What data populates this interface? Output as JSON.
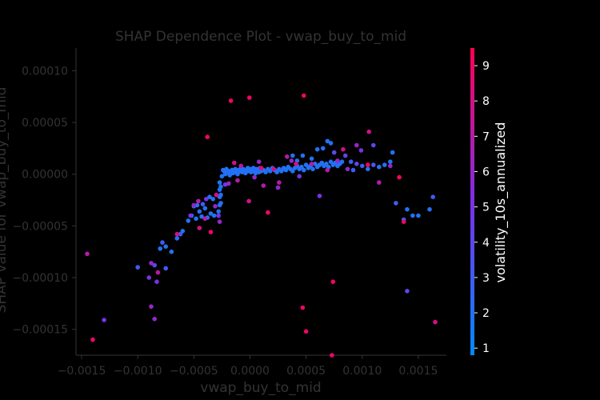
{
  "chart_data": {
    "type": "scatter",
    "title": "SHAP Dependence Plot - vwap_buy_to_mid",
    "xlabel": "vwap_buy_to_mid",
    "ylabel": "SHAP value for vwap_buy_to_mid",
    "xlim": [
      -0.00155,
      0.00175
    ],
    "ylim": [
      -0.000175,
      0.000122
    ],
    "x_ticks": [
      -0.0015,
      -0.001,
      -0.0005,
      0.0,
      0.0005,
      0.001,
      0.0015
    ],
    "x_tick_labels": [
      "−0.0015",
      "−0.0010",
      "−0.0005",
      "0.0000",
      "0.0005",
      "0.0010",
      "0.0015"
    ],
    "y_ticks": [
      0.0001,
      5e-05,
      0.0,
      -5e-05,
      -0.0001,
      -0.00015
    ],
    "y_tick_labels": [
      "0.00010",
      "0.00005",
      "0.00000",
      "−0.00005",
      "−0.00010",
      "−0.00015"
    ],
    "colorbar": {
      "label": "volatility_10s_annualized",
      "range": [
        0.8,
        9.5
      ],
      "ticks": [
        1,
        2,
        3,
        4,
        5,
        6,
        7,
        8,
        9
      ],
      "tick_labels": [
        "1",
        "2",
        "3",
        "4",
        "5",
        "6",
        "7",
        "8",
        "9"
      ],
      "low_color": "#008afb",
      "high_color": "#ff0052"
    },
    "points": [
      [
        -0.00025,
        -2e-06,
        2
      ],
      [
        -0.00024,
        4e-06,
        2
      ],
      [
        -0.00023,
        3e-06,
        2
      ],
      [
        -0.00022,
        0.0,
        2
      ],
      [
        -0.00021,
        5e-06,
        2
      ],
      [
        -0.0002,
        2e-06,
        2
      ],
      [
        -0.00019,
        3e-06,
        2
      ],
      [
        -0.00018,
        -1e-06,
        2
      ],
      [
        -0.00017,
        2e-06,
        2
      ],
      [
        -0.00016,
        4e-06,
        2
      ],
      [
        -0.00015,
        1e-06,
        2
      ],
      [
        -0.00014,
        3e-06,
        2
      ],
      [
        -0.00013,
        5e-06,
        2
      ],
      [
        -0.00012,
        2e-06,
        2
      ],
      [
        -0.00011,
        0.0,
        2
      ],
      [
        -0.0001,
        4e-06,
        2
      ],
      [
        -9e-05,
        3e-06,
        2
      ],
      [
        -8e-05,
        6e-06,
        2
      ],
      [
        -7e-05,
        2e-06,
        2
      ],
      [
        -6e-05,
        5e-06,
        2
      ],
      [
        -5e-05,
        3e-06,
        2
      ],
      [
        -4e-05,
        1e-06,
        2
      ],
      [
        -3e-05,
        4e-06,
        2
      ],
      [
        -2e-05,
        6e-06,
        2
      ],
      [
        -1e-05,
        3e-06,
        2
      ],
      [
        0.0,
        5e-06,
        2
      ],
      [
        1e-05,
        2e-06,
        2
      ],
      [
        2e-05,
        4e-06,
        2
      ],
      [
        3e-05,
        6e-06,
        2
      ],
      [
        4e-05,
        3e-06,
        2
      ],
      [
        5e-05,
        1e-06,
        2
      ],
      [
        6e-05,
        5e-06,
        2
      ],
      [
        7e-05,
        4e-06,
        2
      ],
      [
        8e-05,
        2e-06,
        2
      ],
      [
        9e-05,
        6e-06,
        2
      ],
      [
        0.0001,
        3e-06,
        2
      ],
      [
        0.00012,
        4e-06,
        2
      ],
      [
        0.00014,
        2e-06,
        2
      ],
      [
        0.00016,
        5e-06,
        2
      ],
      [
        0.00018,
        3e-06,
        2
      ],
      [
        0.0002,
        6e-06,
        2
      ],
      [
        0.00022,
        4e-06,
        2
      ],
      [
        0.00024,
        2e-06,
        2
      ],
      [
        0.00026,
        5e-06,
        2
      ],
      [
        0.00028,
        3e-06,
        2
      ],
      [
        0.0003,
        6e-06,
        2
      ],
      [
        0.00032,
        4e-06,
        2
      ],
      [
        0.00034,
        7e-06,
        2
      ],
      [
        0.00036,
        5e-06,
        2
      ],
      [
        0.00038,
        3e-06,
        2
      ],
      [
        0.0004,
        6e-06,
        2
      ],
      [
        0.00042,
        8e-06,
        2
      ],
      [
        0.00044,
        5e-06,
        2
      ],
      [
        0.00046,
        7e-06,
        2
      ],
      [
        0.00048,
        4e-06,
        2
      ],
      [
        0.0005,
        9e-06,
        2
      ],
      [
        0.00052,
        6e-06,
        2
      ],
      [
        0.00054,
        8e-06,
        2
      ],
      [
        0.00056,
        5e-06,
        2
      ],
      [
        0.00058,
        1e-05,
        2
      ],
      [
        0.0006,
        7e-06,
        2
      ],
      [
        0.00062,
        9e-06,
        2
      ],
      [
        0.00064,
        1.1e-05,
        2
      ],
      [
        0.00066,
        8e-06,
        2
      ],
      [
        0.00068,
        1e-05,
        2
      ],
      [
        0.0007,
        7e-06,
        2
      ],
      [
        0.00072,
        1.2e-05,
        2
      ],
      [
        0.00074,
        9e-06,
        2
      ],
      [
        0.00076,
        1.1e-05,
        2
      ],
      [
        0.00078,
        8e-06,
        2
      ],
      [
        0.0008,
        1e-05,
        2
      ],
      [
        0.00082,
        1.2e-05,
        2
      ],
      [
        -0.00027,
        -8e-06,
        2
      ],
      [
        -0.00027,
        -1.5e-05,
        2
      ],
      [
        -0.00027,
        -2.2e-05,
        2
      ],
      [
        -0.00027,
        -3e-05,
        2
      ],
      [
        -0.00028,
        -3.6e-05,
        2
      ],
      [
        -0.00026,
        -1.2e-05,
        2
      ],
      [
        -0.00026,
        -2e-05,
        2
      ],
      [
        -0.00026,
        -2.8e-05,
        2
      ],
      [
        -0.00032,
        -4e-05,
        2
      ],
      [
        -0.00035,
        -3.8e-05,
        2
      ],
      [
        -0.00038,
        -4.2e-05,
        2
      ],
      [
        -0.0004,
        -3.3e-05,
        2
      ],
      [
        -0.00043,
        -4.1e-05,
        2
      ],
      [
        -0.00045,
        -3.6e-05,
        2
      ],
      [
        -0.00048,
        -4.3e-05,
        2
      ],
      [
        -0.0005,
        -3.1e-05,
        2
      ],
      [
        -0.00052,
        -4e-05,
        2
      ],
      [
        -0.00055,
        -4.5e-05,
        2
      ],
      [
        -0.00042,
        -2.9e-05,
        3
      ],
      [
        -0.00047,
        -3e-05,
        2
      ],
      [
        -0.00033,
        -2.4e-05,
        2
      ],
      [
        -0.00036,
        -2.2e-05,
        2
      ],
      [
        -0.0006,
        -5.5e-05,
        2
      ],
      [
        -0.00062,
        -5.8e-05,
        3
      ],
      [
        -0.00065,
        -6.2e-05,
        2
      ],
      [
        -0.0007,
        -7.5e-05,
        2
      ],
      [
        -0.00075,
        -7e-05,
        2
      ],
      [
        -0.00078,
        -6.6e-05,
        3
      ],
      [
        -0.0008,
        -7.2e-05,
        2
      ],
      [
        -0.00085,
        -8.8e-05,
        4
      ],
      [
        -0.0009,
        -0.0001,
        5
      ],
      [
        -0.001,
        -9e-05,
        3
      ],
      [
        -0.00083,
        -0.000104,
        5
      ],
      [
        0.0009,
        1.2e-05,
        3
      ],
      [
        0.00095,
        1e-05,
        4
      ],
      [
        0.001,
        8e-06,
        3
      ],
      [
        0.00105,
        5e-06,
        2
      ],
      [
        0.0011,
        9e-06,
        3
      ],
      [
        0.00115,
        7e-06,
        2
      ],
      [
        0.0012,
        9e-06,
        2
      ],
      [
        0.00125,
        1.2e-05,
        2
      ],
      [
        0.00127,
        2.1e-05,
        2
      ],
      [
        0.00092,
        4e-06,
        3
      ],
      [
        0.00085,
        1.8e-05,
        4
      ],
      [
        0.00069,
        3.2e-05,
        2
      ],
      [
        0.00072,
        3e-05,
        2
      ],
      [
        0.00065,
        2.5e-05,
        2
      ],
      [
        0.0006,
        2.4e-05,
        2
      ],
      [
        0.00055,
        1.5e-05,
        2
      ],
      [
        0.00047,
        1.8e-05,
        2
      ],
      [
        0.00042,
        1.3e-05,
        2
      ],
      [
        0.00038,
        1.8e-05,
        2
      ],
      [
        0.0014,
        -3.4e-05,
        2
      ],
      [
        0.00145,
        -4e-05,
        2
      ],
      [
        0.0015,
        -4e-05,
        2
      ],
      [
        0.0016,
        -3.4e-05,
        2
      ],
      [
        0.00163,
        -2.2e-05,
        3
      ],
      [
        0.0014,
        -0.000113,
        4
      ],
      [
        0.00137,
        -4.4e-05,
        3
      ],
      [
        0.0013,
        -2.8e-05,
        3
      ],
      [
        0.0011,
        2.8e-05,
        4
      ],
      [
        0.00075,
        2.1e-05,
        4
      ],
      [
        -0.00145,
        -7.7e-05,
        7
      ],
      [
        -0.0014,
        -0.00016,
        9
      ],
      [
        -0.0013,
        -0.000141,
        5
      ],
      [
        -0.00088,
        -0.000128,
        6
      ],
      [
        -0.00085,
        -0.00014,
        6
      ],
      [
        -0.00088,
        -8.6e-05,
        6
      ],
      [
        -0.00082,
        -9.5e-05,
        7
      ],
      [
        -0.00075,
        -9.1e-05,
        3
      ],
      [
        -0.00065,
        -5.8e-05,
        8
      ],
      [
        -0.00045,
        -5.2e-05,
        8
      ],
      [
        -0.00035,
        -5.6e-05,
        9
      ],
      [
        -0.0003,
        -2e-05,
        8
      ],
      [
        -0.0004,
        -4.3e-05,
        7
      ],
      [
        -0.00038,
        3.6e-05,
        9
      ],
      [
        -0.00017,
        7.1e-05,
        9
      ],
      [
        -5e-06,
        7.4e-05,
        9
      ],
      [
        0.00048,
        7.6e-05,
        9
      ],
      [
        0.00073,
        -0.000175,
        9
      ],
      [
        0.00074,
        -0.000104,
        9
      ],
      [
        0.00047,
        -0.000129,
        9
      ],
      [
        0.0005,
        -0.000152,
        9
      ],
      [
        0.00016,
        -3.7e-05,
        9
      ],
      [
        -1e-05,
        -2.6e-05,
        8
      ],
      [
        0.00012,
        -1.1e-05,
        7
      ],
      [
        0.00025,
        -1.3e-05,
        6
      ],
      [
        0.00062,
        -2.1e-05,
        5
      ],
      [
        0.00106,
        4.1e-05,
        8
      ],
      [
        0.00105,
        9e-06,
        9
      ],
      [
        0.00125,
        8e-06,
        6
      ],
      [
        0.00115,
        -8e-06,
        7
      ],
      [
        0.00133,
        -3e-06,
        9
      ],
      [
        0.00137,
        -4.6e-05,
        9
      ],
      [
        0.00165,
        -0.000143,
        8
      ],
      [
        0.00083,
        2.4e-05,
        8
      ],
      [
        0.00095,
        2.8e-05,
        6
      ],
      [
        0.00078,
        1.3e-05,
        6
      ],
      [
        0.00055,
        1e-05,
        7
      ],
      [
        0.00041,
        1e-05,
        8
      ],
      [
        0.00033,
        1.7e-05,
        7
      ],
      [
        0.00021,
        5e-06,
        8
      ],
      [
        8e-05,
        1.2e-05,
        6
      ],
      [
        -8e-05,
        8e-06,
        7
      ],
      [
        -0.00014,
        1.1e-05,
        8
      ],
      [
        -0.00019,
        -9e-06,
        6
      ],
      [
        -0.00011,
        -6e-06,
        7
      ],
      [
        4e-05,
        -3e-06,
        6
      ],
      [
        0.00026,
        -8e-06,
        7
      ],
      [
        0.00069,
        4e-06,
        7
      ],
      [
        0.00087,
        5e-06,
        6
      ],
      [
        -0.00027,
        -4.6e-05,
        6
      ],
      [
        -0.00031,
        -3.1e-05,
        6
      ],
      [
        -0.00028,
        -4e-05,
        5
      ],
      [
        -0.00022,
        -1e-05,
        5
      ],
      [
        -0.0005,
        -3e-05,
        6
      ],
      [
        -0.00046,
        -2.6e-05,
        7
      ],
      [
        -0.00053,
        -4e-05,
        5
      ],
      [
        -0.00039,
        -2.4e-05,
        5
      ],
      [
        0.0001,
        6e-06,
        9
      ],
      [
        0.00037,
        1.3e-05,
        6
      ],
      [
        0.00044,
        -2e-06,
        5
      ],
      [
        0.00099,
        2.3e-05,
        5
      ]
    ]
  }
}
